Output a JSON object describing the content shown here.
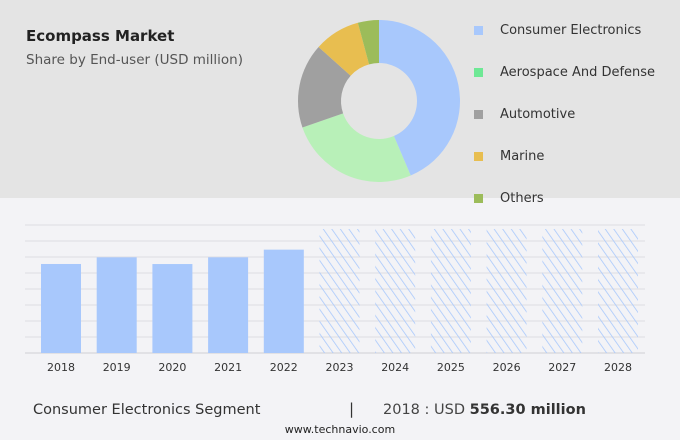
{
  "header": {
    "title": "Ecompass Market",
    "subtitle": "Share by End-user (USD million)"
  },
  "chart_data": [
    {
      "type": "pie",
      "style": "donut",
      "slices": [
        {
          "name": "Consumer Electronics",
          "value": 43.6,
          "color": "#a8c8fc"
        },
        {
          "name": "Aerospace And Defense",
          "value": 26.1,
          "color": "#b8f0b8"
        },
        {
          "name": "Automotive",
          "value": 16.9,
          "color": "#a0a0a0"
        },
        {
          "name": "Marine",
          "value": 9.2,
          "color": "#e8be50"
        },
        {
          "name": "Others",
          "value": 4.2,
          "color": "#9cbc5a"
        }
      ],
      "legend_placement": "right",
      "legend_colors": [
        "#a8c8fc",
        "#6ee895",
        "#a0a0a0",
        "#e8be50",
        "#9cbc5a"
      ]
    },
    {
      "type": "bar",
      "categories": [
        "2018",
        "2019",
        "2020",
        "2021",
        "2022",
        "2023",
        "2024",
        "2025",
        "2026",
        "2027",
        "2028"
      ],
      "values": [
        556.3,
        598,
        556,
        598,
        646,
        null,
        null,
        null,
        null,
        null,
        null
      ],
      "forecast_categories": [
        "2023",
        "2024",
        "2025",
        "2026",
        "2027",
        "2028"
      ],
      "ylim": [
        0,
        800
      ],
      "grid": true,
      "color": "#a8c8fc",
      "forecast_style": "hatched"
    }
  ],
  "footer": {
    "segment": "Consumer Electronics Segment",
    "separator": "|",
    "value_prefix": "2018 : USD ",
    "value": "556.30 million",
    "site": "www.technavio.com"
  }
}
